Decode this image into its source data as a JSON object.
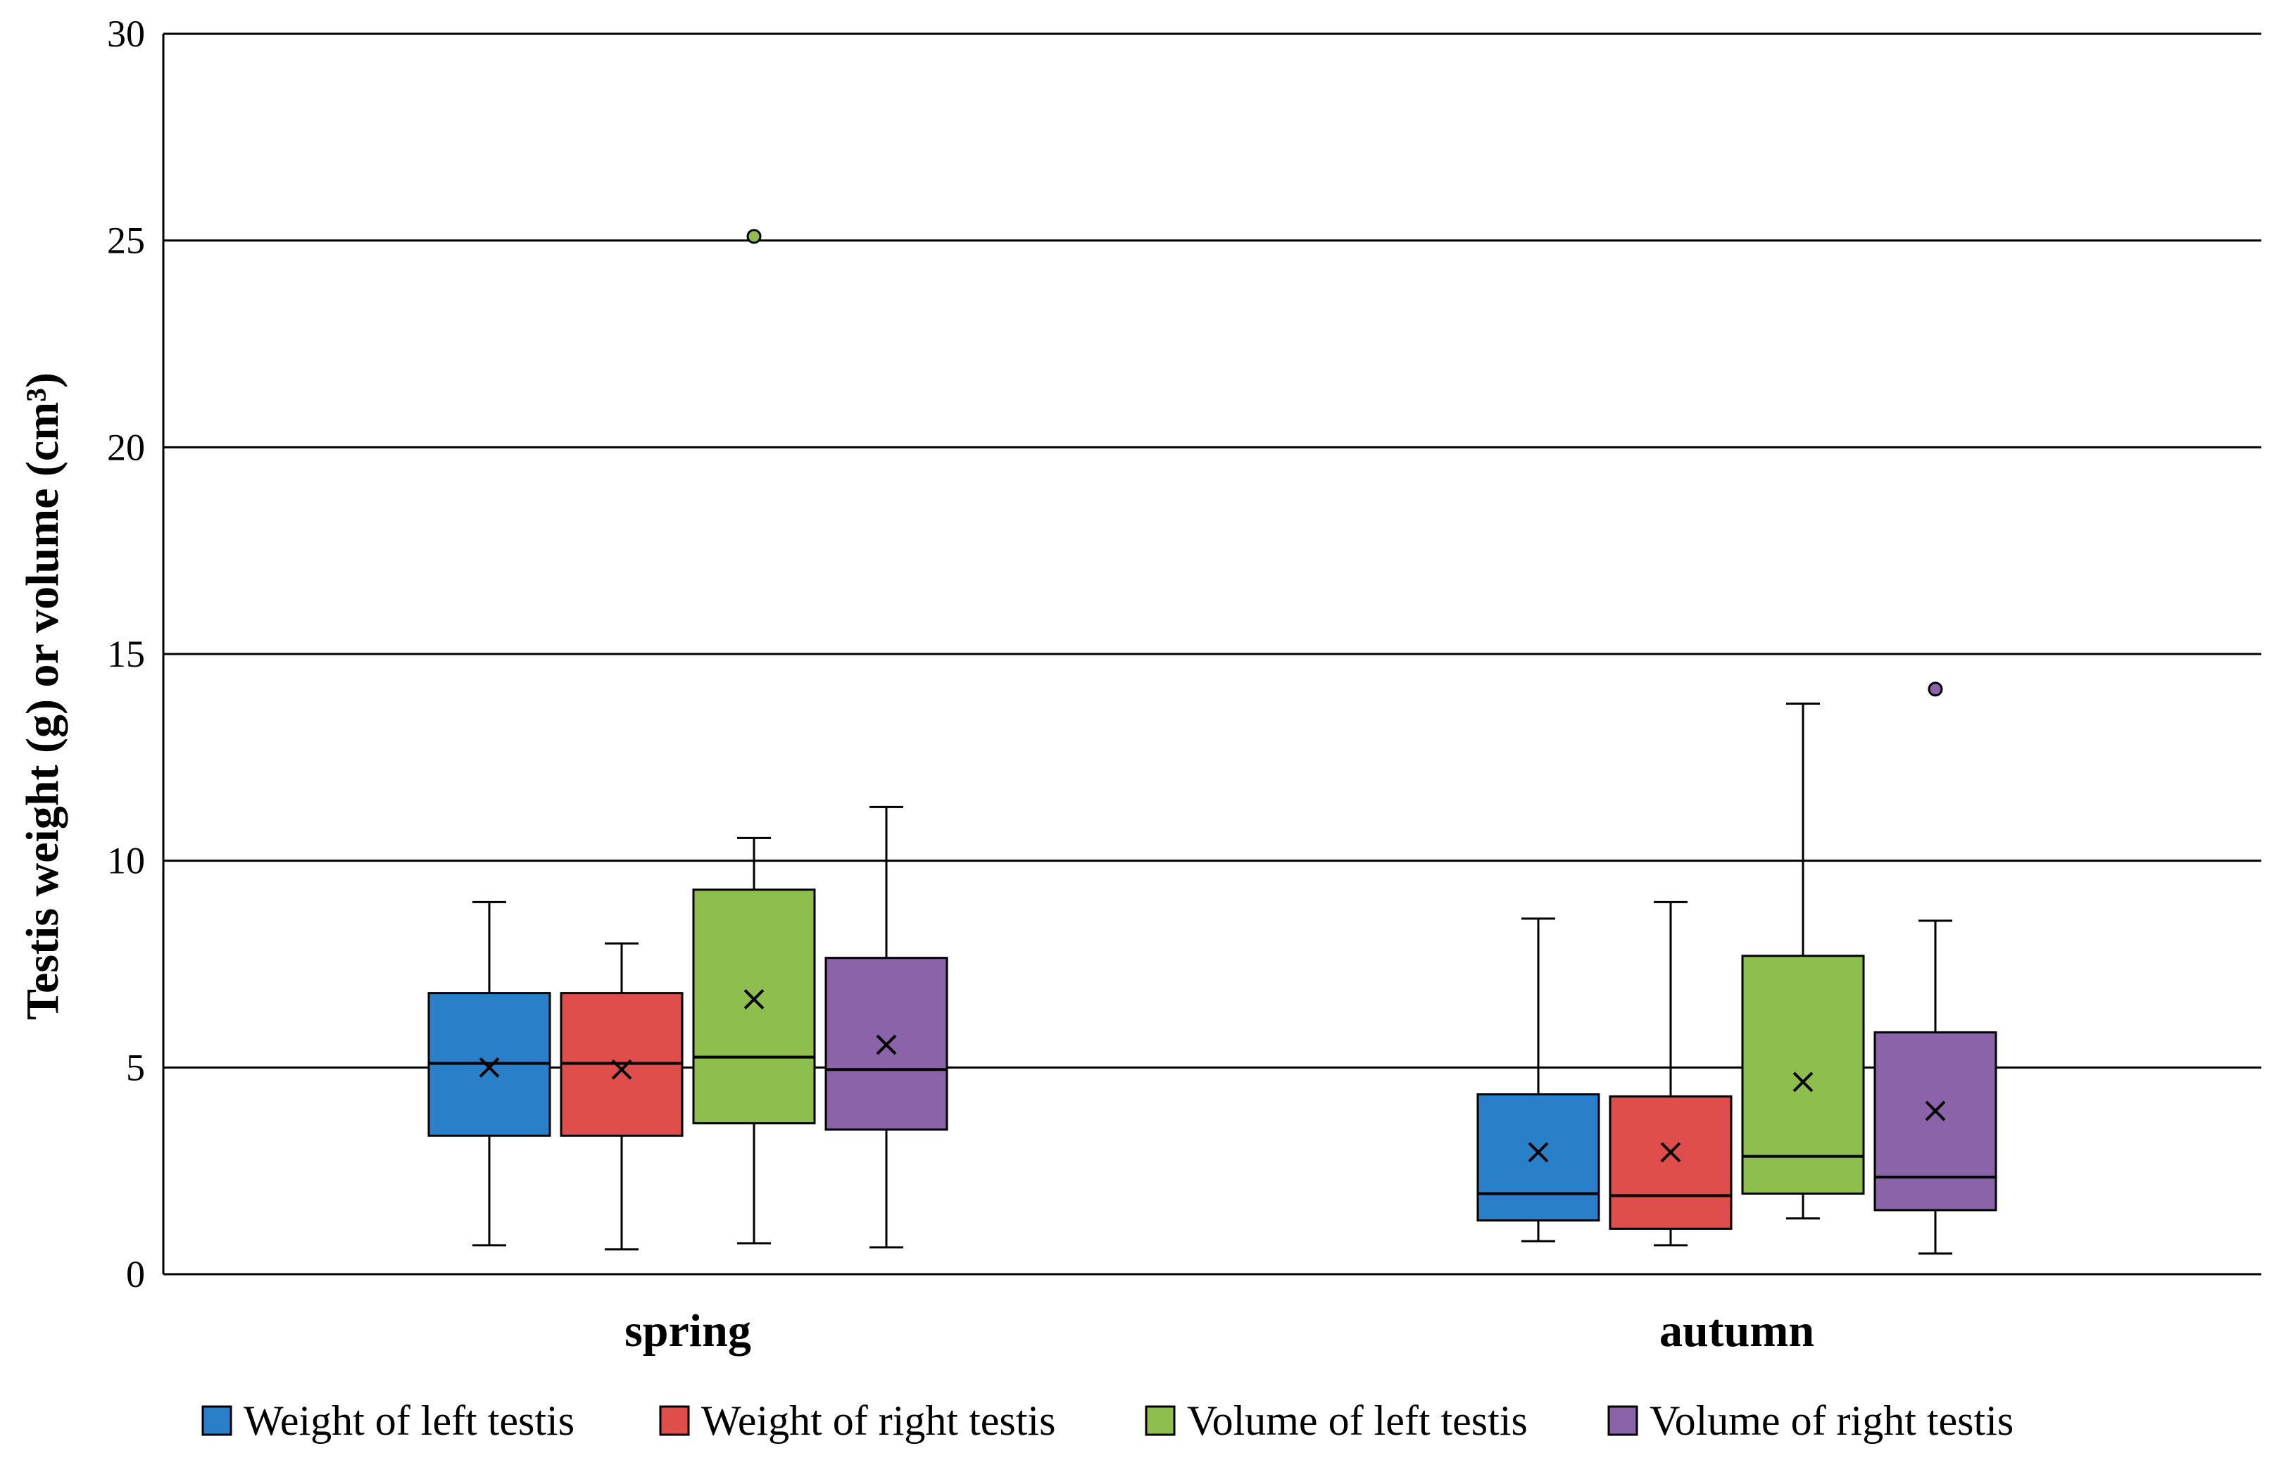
{
  "chart_data": {
    "type": "box",
    "title": "",
    "xlabel": "",
    "ylabel": "Testis weight (g) or volume (cm³)",
    "ylim": [
      0,
      30
    ],
    "yticks": [
      0,
      5,
      10,
      15,
      20,
      25,
      30
    ],
    "grid": true,
    "legend_position": "bottom",
    "categories": [
      "spring",
      "autumn"
    ],
    "series": [
      {
        "name": "Weight of left testis",
        "color": "#2a80c8",
        "boxes": [
          {
            "category": "spring",
            "min": 0.7,
            "q1": 3.35,
            "median": 5.1,
            "q3": 6.8,
            "max": 9.0,
            "mean": 5.0,
            "outliers": []
          },
          {
            "category": "autumn",
            "min": 0.8,
            "q1": 1.3,
            "median": 1.95,
            "q3": 4.35,
            "max": 8.6,
            "mean": 2.95,
            "outliers": []
          }
        ]
      },
      {
        "name": "Weight of right testis",
        "color": "#df4e4b",
        "boxes": [
          {
            "category": "spring",
            "min": 0.6,
            "q1": 3.35,
            "median": 5.1,
            "q3": 6.8,
            "max": 8.0,
            "mean": 4.95,
            "outliers": []
          },
          {
            "category": "autumn",
            "min": 0.7,
            "q1": 1.1,
            "median": 1.9,
            "q3": 4.3,
            "max": 9.0,
            "mean": 2.95,
            "outliers": []
          }
        ]
      },
      {
        "name": "Volume of left testis",
        "color": "#8ebf4e",
        "boxes": [
          {
            "category": "spring",
            "min": 0.75,
            "q1": 3.65,
            "median": 5.25,
            "q3": 9.3,
            "max": 10.55,
            "mean": 6.65,
            "outliers": [
              25.1
            ]
          },
          {
            "category": "autumn",
            "min": 1.35,
            "q1": 1.95,
            "median": 2.85,
            "q3": 7.7,
            "max": 13.8,
            "mean": 4.65,
            "outliers": []
          }
        ]
      },
      {
        "name": "Volume of right testis",
        "color": "#8a63a8",
        "boxes": [
          {
            "category": "spring",
            "min": 0.65,
            "q1": 3.5,
            "median": 4.95,
            "q3": 7.65,
            "max": 11.3,
            "mean": 5.55,
            "outliers": []
          },
          {
            "category": "autumn",
            "min": 0.5,
            "q1": 1.55,
            "median": 2.35,
            "q3": 5.85,
            "max": 8.55,
            "mean": 3.95,
            "outliers": [
              14.15
            ]
          }
        ]
      }
    ]
  }
}
